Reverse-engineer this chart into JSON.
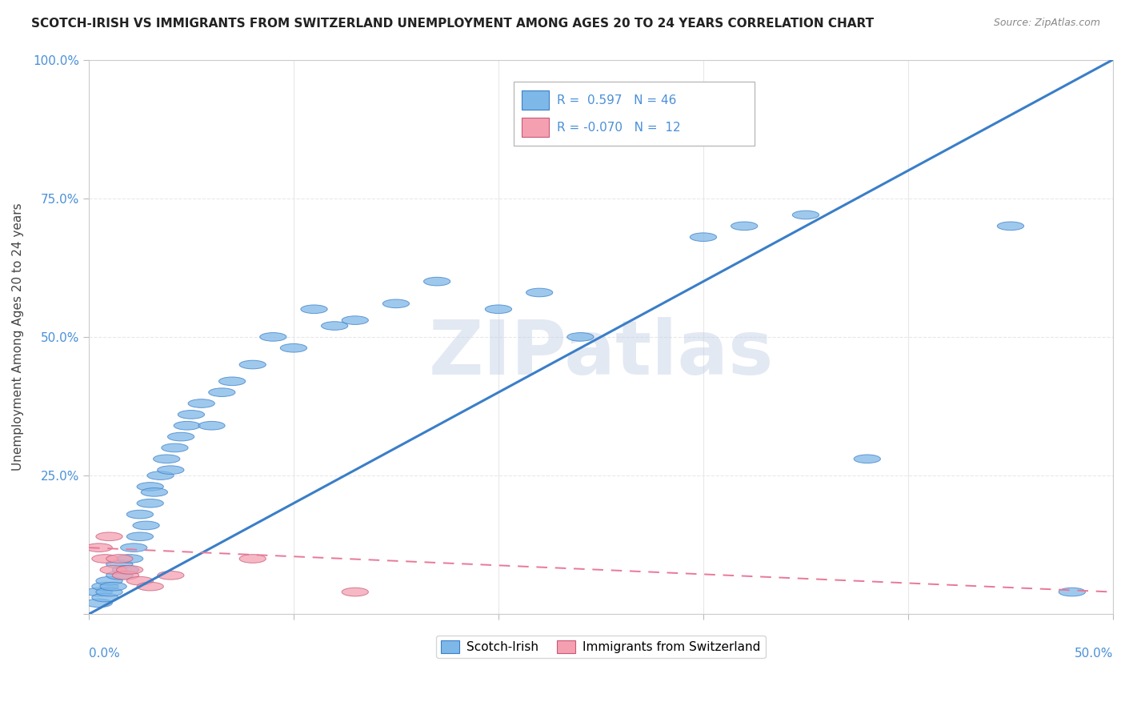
{
  "title": "SCOTCH-IRISH VS IMMIGRANTS FROM SWITZERLAND UNEMPLOYMENT AMONG AGES 20 TO 24 YEARS CORRELATION CHART",
  "source": "Source: ZipAtlas.com",
  "ylabel": "Unemployment Among Ages 20 to 24 years",
  "ytick_values": [
    0.0,
    0.25,
    0.5,
    0.75,
    1.0
  ],
  "ytick_labels": [
    "",
    "25.0%",
    "50.0%",
    "75.0%",
    "100.0%"
  ],
  "xlim": [
    0.0,
    0.5
  ],
  "ylim": [
    0.0,
    1.0
  ],
  "legend_label1": "Scotch-Irish",
  "legend_label2": "Immigrants from Switzerland",
  "scatter_blue": [
    [
      0.005,
      0.02
    ],
    [
      0.005,
      0.04
    ],
    [
      0.008,
      0.03
    ],
    [
      0.008,
      0.05
    ],
    [
      0.01,
      0.04
    ],
    [
      0.01,
      0.06
    ],
    [
      0.012,
      0.05
    ],
    [
      0.015,
      0.07
    ],
    [
      0.015,
      0.09
    ],
    [
      0.018,
      0.08
    ],
    [
      0.02,
      0.1
    ],
    [
      0.022,
      0.12
    ],
    [
      0.025,
      0.14
    ],
    [
      0.025,
      0.18
    ],
    [
      0.028,
      0.16
    ],
    [
      0.03,
      0.2
    ],
    [
      0.03,
      0.23
    ],
    [
      0.032,
      0.22
    ],
    [
      0.035,
      0.25
    ],
    [
      0.038,
      0.28
    ],
    [
      0.04,
      0.26
    ],
    [
      0.042,
      0.3
    ],
    [
      0.045,
      0.32
    ],
    [
      0.048,
      0.34
    ],
    [
      0.05,
      0.36
    ],
    [
      0.055,
      0.38
    ],
    [
      0.06,
      0.34
    ],
    [
      0.065,
      0.4
    ],
    [
      0.07,
      0.42
    ],
    [
      0.08,
      0.45
    ],
    [
      0.09,
      0.5
    ],
    [
      0.1,
      0.48
    ],
    [
      0.11,
      0.55
    ],
    [
      0.12,
      0.52
    ],
    [
      0.13,
      0.53
    ],
    [
      0.15,
      0.56
    ],
    [
      0.17,
      0.6
    ],
    [
      0.2,
      0.55
    ],
    [
      0.22,
      0.58
    ],
    [
      0.24,
      0.5
    ],
    [
      0.3,
      0.68
    ],
    [
      0.32,
      0.7
    ],
    [
      0.35,
      0.72
    ],
    [
      0.38,
      0.28
    ],
    [
      0.45,
      0.7
    ],
    [
      0.48,
      0.04
    ]
  ],
  "scatter_pink": [
    [
      0.005,
      0.12
    ],
    [
      0.008,
      0.1
    ],
    [
      0.01,
      0.14
    ],
    [
      0.012,
      0.08
    ],
    [
      0.015,
      0.1
    ],
    [
      0.018,
      0.07
    ],
    [
      0.02,
      0.08
    ],
    [
      0.025,
      0.06
    ],
    [
      0.03,
      0.05
    ],
    [
      0.04,
      0.07
    ],
    [
      0.08,
      0.1
    ],
    [
      0.13,
      0.04
    ]
  ],
  "blue_line": [
    0.0,
    0.0,
    0.5,
    1.0
  ],
  "pink_line": [
    0.0,
    0.12,
    0.5,
    0.04
  ],
  "blue_color": "#7EB8E8",
  "pink_color": "#F4A0B0",
  "line_blue_color": "#3A7EC8",
  "line_pink_color": "#E87898",
  "watermark_color": "#D0D8E8",
  "background_color": "#FFFFFF",
  "grid_color": "#E8E8E8",
  "axis_label_color": "#4A90D9",
  "title_color": "#222222",
  "ylabel_color": "#444444"
}
